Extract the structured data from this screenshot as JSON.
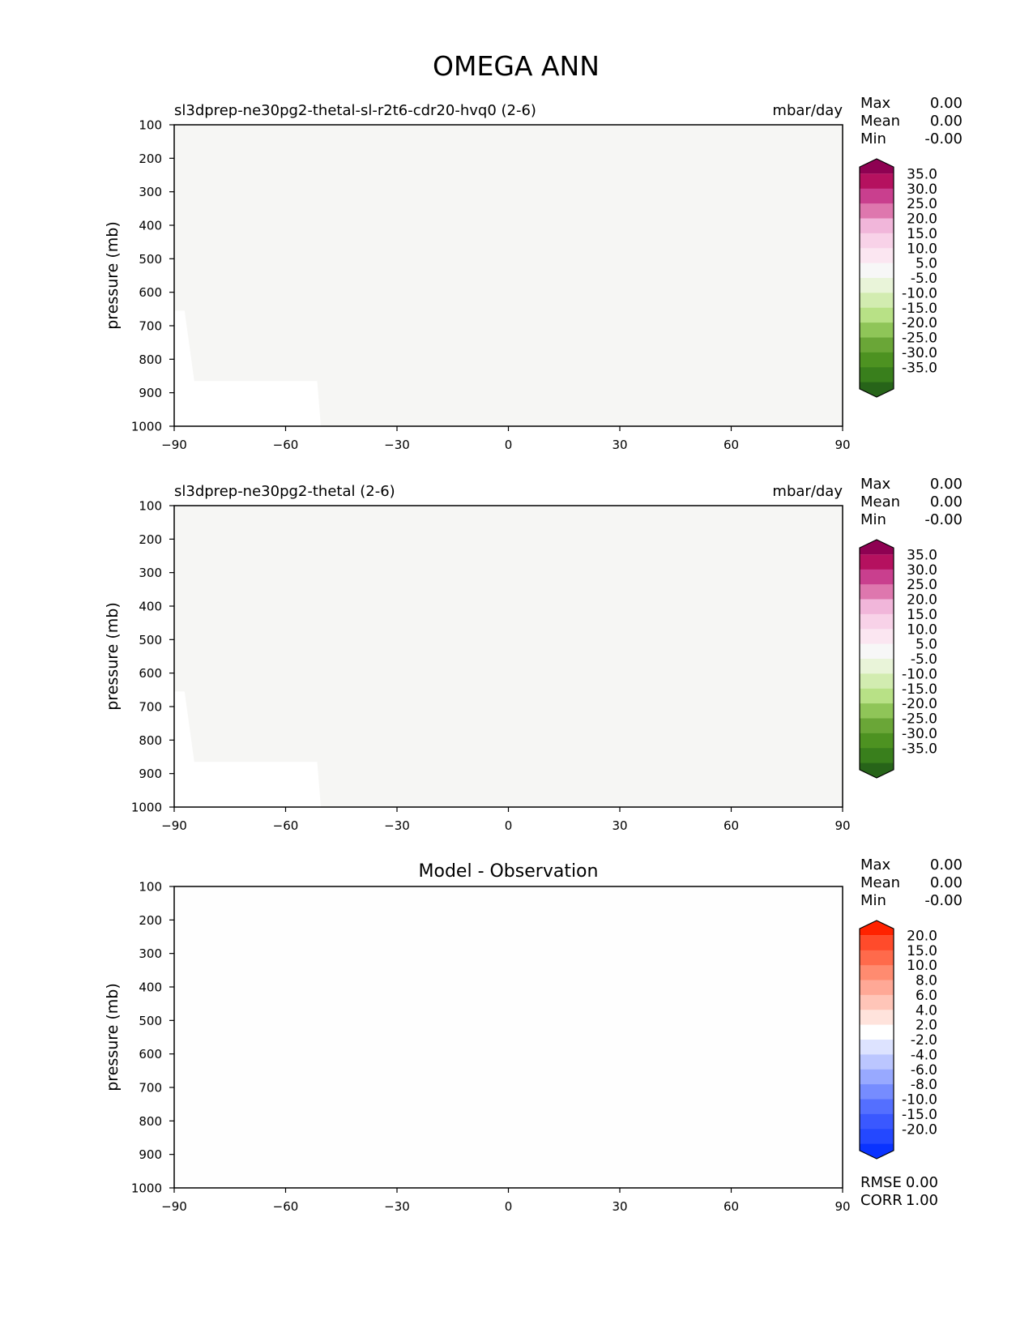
{
  "figure": {
    "title": "OMEGA ANN"
  },
  "stat_labels": {
    "max": "Max",
    "mean": "Mean",
    "min": "Min",
    "rmse": "RMSE",
    "corr": "CORR"
  },
  "chart_data": [
    {
      "type": "heatmap",
      "title": "sl3dprep-ne30pg2-thetal-sl-r2t6-cdr20-hvq0 (2-6)",
      "units": "mbar/day",
      "xlabel": "",
      "ylabel": "pressure (mb)",
      "xlim": [
        -90,
        90
      ],
      "ylim": [
        1000,
        100
      ],
      "x_ticks": [
        "−90",
        "−60",
        "−30",
        "0",
        "30",
        "60",
        "90"
      ],
      "y_ticks": [
        "100",
        "200",
        "300",
        "400",
        "500",
        "600",
        "700",
        "800",
        "900",
        "1000"
      ],
      "field_color": "#f6f6f4",
      "missing_region": [
        [
          -90,
          655
        ],
        [
          -87.2,
          655
        ],
        [
          -84.6,
          865
        ],
        [
          -51.5,
          865
        ],
        [
          -50.5,
          1000
        ],
        [
          -90,
          1000
        ]
      ],
      "stats": {
        "max": "0.00",
        "mean": "0.00",
        "min": "-0.00"
      },
      "colorbar": {
        "labels": [
          "35.0",
          "30.0",
          "25.0",
          "20.0",
          "15.0",
          "10.0",
          "5.0",
          "-5.0",
          "-10.0",
          "-15.0",
          "-20.0",
          "-25.0",
          "-30.0",
          "-35.0"
        ],
        "colors": [
          "#8e0152",
          "#b5115f",
          "#c93f8e",
          "#de77ae",
          "#f1b6da",
          "#f8d2e8",
          "#fbe6f1",
          "#f7f7f7",
          "#e9f4d9",
          "#d2ecb0",
          "#b8e186",
          "#8fc558",
          "#6aa637",
          "#4d9221",
          "#397f1c",
          "#276419"
        ]
      }
    },
    {
      "type": "heatmap",
      "title": "sl3dprep-ne30pg2-thetal (2-6)",
      "units": "mbar/day",
      "xlabel": "",
      "ylabel": "pressure (mb)",
      "xlim": [
        -90,
        90
      ],
      "ylim": [
        1000,
        100
      ],
      "x_ticks": [
        "−90",
        "−60",
        "−30",
        "0",
        "30",
        "60",
        "90"
      ],
      "y_ticks": [
        "100",
        "200",
        "300",
        "400",
        "500",
        "600",
        "700",
        "800",
        "900",
        "1000"
      ],
      "field_color": "#f6f6f4",
      "missing_region": [
        [
          -90,
          655
        ],
        [
          -87.2,
          655
        ],
        [
          -84.6,
          865
        ],
        [
          -51.5,
          865
        ],
        [
          -50.5,
          1000
        ],
        [
          -90,
          1000
        ]
      ],
      "stats": {
        "max": "0.00",
        "mean": "0.00",
        "min": "-0.00"
      },
      "colorbar": {
        "labels": [
          "35.0",
          "30.0",
          "25.0",
          "20.0",
          "15.0",
          "10.0",
          "5.0",
          "-5.0",
          "-10.0",
          "-15.0",
          "-20.0",
          "-25.0",
          "-30.0",
          "-35.0"
        ],
        "colors": [
          "#8e0152",
          "#b5115f",
          "#c93f8e",
          "#de77ae",
          "#f1b6da",
          "#f8d2e8",
          "#fbe6f1",
          "#f7f7f7",
          "#e9f4d9",
          "#d2ecb0",
          "#b8e186",
          "#8fc558",
          "#6aa637",
          "#4d9221",
          "#397f1c",
          "#276419"
        ]
      }
    },
    {
      "type": "heatmap",
      "title": "Model - Observation",
      "units": "",
      "xlabel": "",
      "ylabel": "pressure (mb)",
      "xlim": [
        -90,
        90
      ],
      "ylim": [
        1000,
        100
      ],
      "x_ticks": [
        "−90",
        "−60",
        "−30",
        "0",
        "30",
        "60",
        "90"
      ],
      "y_ticks": [
        "100",
        "200",
        "300",
        "400",
        "500",
        "600",
        "700",
        "800",
        "900",
        "1000"
      ],
      "field_color": "#fefefe",
      "missing_region": [],
      "stats": {
        "max": "0.00",
        "mean": "0.00",
        "min": "-0.00",
        "rmse": "0.00",
        "corr": "1.00"
      },
      "colorbar": {
        "labels": [
          "20.0",
          "15.0",
          "10.0",
          "8.0",
          "6.0",
          "4.0",
          "2.0",
          "-2.0",
          "-4.0",
          "-6.0",
          "-8.0",
          "-10.0",
          "-15.0",
          "-20.0"
        ],
        "colors": [
          "#ff2200",
          "#ff4b2b",
          "#ff6a4b",
          "#ff8b70",
          "#ffa896",
          "#ffc5b8",
          "#ffe3dc",
          "#ffffff",
          "#dde3ff",
          "#bbc6ff",
          "#98a9ff",
          "#768cff",
          "#546fff",
          "#3a58ff",
          "#2448ff",
          "#0a33ff"
        ]
      }
    }
  ]
}
